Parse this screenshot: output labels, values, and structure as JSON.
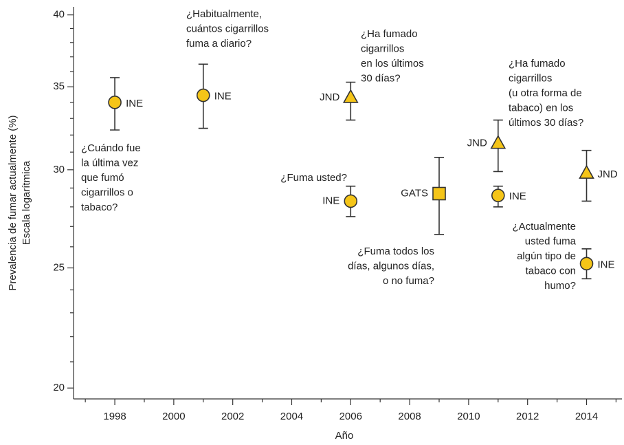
{
  "chart_data": {
    "type": "scatter",
    "x_label": "Año",
    "y_label": [
      "Prevalencia de fumar actualmente (%)",
      "Escala logarítmica"
    ],
    "xlim": [
      1996.6,
      2015.2
    ],
    "xticks": [
      1998,
      2000,
      2002,
      2004,
      2006,
      2008,
      2010,
      2012,
      2014
    ],
    "xminorticks": [
      1997,
      1999,
      2001,
      2003,
      2005,
      2007,
      2009,
      2011,
      2013,
      2015
    ],
    "ylim": [
      19.6,
      40.6
    ],
    "yticks": [
      20,
      25,
      30,
      35,
      40
    ],
    "log_y": true,
    "yminorticks": [
      21,
      22,
      23,
      24,
      26,
      27,
      28,
      29,
      31,
      32,
      33,
      34,
      36,
      37,
      38,
      39
    ],
    "marker_fill": "#f5c518",
    "series": [
      {
        "name": "INE",
        "color": "#9b3a30",
        "marker": "circle",
        "x": [
          1998,
          2001,
          2006,
          2011,
          2014
        ],
        "values": [
          34.0,
          34.45,
          28.3,
          28.6,
          25.2
        ],
        "low": [
          32.3,
          32.4,
          27.5,
          28.0,
          24.5
        ],
        "high": [
          35.6,
          36.5,
          29.1,
          29.1,
          25.9
        ]
      },
      {
        "name": "JND",
        "color": "#3a62a8",
        "marker": "triangle",
        "x": [
          2006,
          2011,
          2014
        ],
        "values": [
          34.3,
          31.5,
          29.8
        ],
        "low": [
          32.9,
          29.9,
          28.3
        ],
        "high": [
          35.3,
          32.9,
          31.1
        ]
      },
      {
        "name": "GATS",
        "color": "#1f8a4c",
        "marker": "square",
        "x": [
          2009
        ],
        "values": [
          28.7
        ],
        "low": [
          26.6
        ],
        "high": [
          30.7
        ]
      }
    ],
    "annotations": [
      [
        "¿Cuándo fue",
        "la última vez",
        "que fumó",
        "cigarrillos o",
        "tabaco?"
      ],
      [
        "¿Habitualmente,",
        "cuántos cigarrillos",
        "fuma a diario?"
      ],
      [
        "¿Ha fumado",
        "cigarrillos",
        "en los últimos",
        "30 días?"
      ],
      [
        "¿Fuma usted?"
      ],
      [
        "¿Fuma todos los",
        "días, algunos días,",
        "o no fuma?"
      ],
      [
        "¿Ha fumado",
        "cigarrillos",
        "(u otra forma de",
        "tabaco) en los",
        "últimos 30 días?"
      ],
      [
        "¿Actualmente",
        "usted fuma",
        "algún tipo de",
        "tabaco con",
        "humo?"
      ]
    ]
  }
}
